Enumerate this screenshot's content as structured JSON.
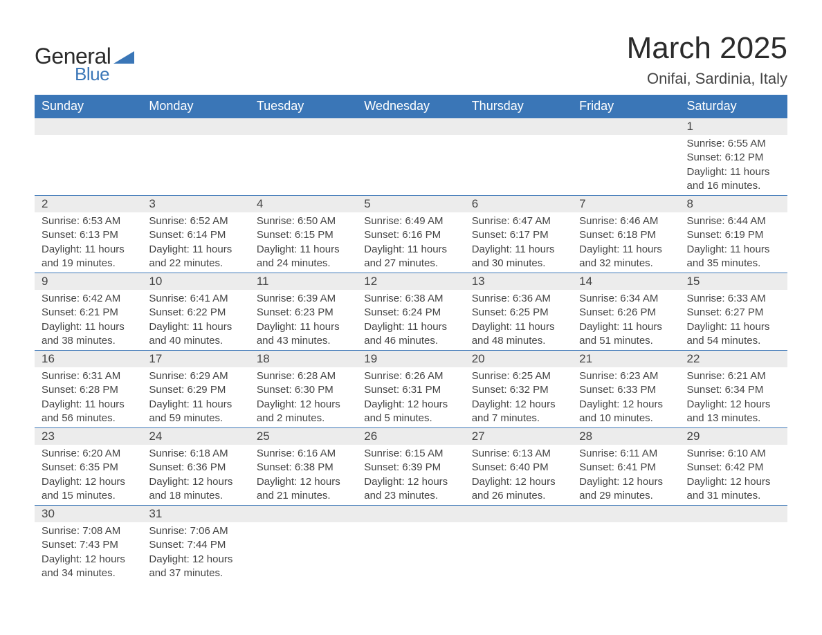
{
  "logo": {
    "text1": "General",
    "text2": "Blue",
    "shape_color": "#3a76b7"
  },
  "title": "March 2025",
  "location": "Onifai, Sardinia, Italy",
  "colors": {
    "header_bg": "#3a76b7",
    "header_text": "#ffffff",
    "daynum_bg": "#ececec",
    "body_text": "#444444",
    "rule": "#3a76b7"
  },
  "weekdays": [
    "Sunday",
    "Monday",
    "Tuesday",
    "Wednesday",
    "Thursday",
    "Friday",
    "Saturday"
  ],
  "weeks": [
    [
      null,
      null,
      null,
      null,
      null,
      null,
      {
        "n": "1",
        "sr": "Sunrise: 6:55 AM",
        "ss": "Sunset: 6:12 PM",
        "d1": "Daylight: 11 hours",
        "d2": "and 16 minutes."
      }
    ],
    [
      {
        "n": "2",
        "sr": "Sunrise: 6:53 AM",
        "ss": "Sunset: 6:13 PM",
        "d1": "Daylight: 11 hours",
        "d2": "and 19 minutes."
      },
      {
        "n": "3",
        "sr": "Sunrise: 6:52 AM",
        "ss": "Sunset: 6:14 PM",
        "d1": "Daylight: 11 hours",
        "d2": "and 22 minutes."
      },
      {
        "n": "4",
        "sr": "Sunrise: 6:50 AM",
        "ss": "Sunset: 6:15 PM",
        "d1": "Daylight: 11 hours",
        "d2": "and 24 minutes."
      },
      {
        "n": "5",
        "sr": "Sunrise: 6:49 AM",
        "ss": "Sunset: 6:16 PM",
        "d1": "Daylight: 11 hours",
        "d2": "and 27 minutes."
      },
      {
        "n": "6",
        "sr": "Sunrise: 6:47 AM",
        "ss": "Sunset: 6:17 PM",
        "d1": "Daylight: 11 hours",
        "d2": "and 30 minutes."
      },
      {
        "n": "7",
        "sr": "Sunrise: 6:46 AM",
        "ss": "Sunset: 6:18 PM",
        "d1": "Daylight: 11 hours",
        "d2": "and 32 minutes."
      },
      {
        "n": "8",
        "sr": "Sunrise: 6:44 AM",
        "ss": "Sunset: 6:19 PM",
        "d1": "Daylight: 11 hours",
        "d2": "and 35 minutes."
      }
    ],
    [
      {
        "n": "9",
        "sr": "Sunrise: 6:42 AM",
        "ss": "Sunset: 6:21 PM",
        "d1": "Daylight: 11 hours",
        "d2": "and 38 minutes."
      },
      {
        "n": "10",
        "sr": "Sunrise: 6:41 AM",
        "ss": "Sunset: 6:22 PM",
        "d1": "Daylight: 11 hours",
        "d2": "and 40 minutes."
      },
      {
        "n": "11",
        "sr": "Sunrise: 6:39 AM",
        "ss": "Sunset: 6:23 PM",
        "d1": "Daylight: 11 hours",
        "d2": "and 43 minutes."
      },
      {
        "n": "12",
        "sr": "Sunrise: 6:38 AM",
        "ss": "Sunset: 6:24 PM",
        "d1": "Daylight: 11 hours",
        "d2": "and 46 minutes."
      },
      {
        "n": "13",
        "sr": "Sunrise: 6:36 AM",
        "ss": "Sunset: 6:25 PM",
        "d1": "Daylight: 11 hours",
        "d2": "and 48 minutes."
      },
      {
        "n": "14",
        "sr": "Sunrise: 6:34 AM",
        "ss": "Sunset: 6:26 PM",
        "d1": "Daylight: 11 hours",
        "d2": "and 51 minutes."
      },
      {
        "n": "15",
        "sr": "Sunrise: 6:33 AM",
        "ss": "Sunset: 6:27 PM",
        "d1": "Daylight: 11 hours",
        "d2": "and 54 minutes."
      }
    ],
    [
      {
        "n": "16",
        "sr": "Sunrise: 6:31 AM",
        "ss": "Sunset: 6:28 PM",
        "d1": "Daylight: 11 hours",
        "d2": "and 56 minutes."
      },
      {
        "n": "17",
        "sr": "Sunrise: 6:29 AM",
        "ss": "Sunset: 6:29 PM",
        "d1": "Daylight: 11 hours",
        "d2": "and 59 minutes."
      },
      {
        "n": "18",
        "sr": "Sunrise: 6:28 AM",
        "ss": "Sunset: 6:30 PM",
        "d1": "Daylight: 12 hours",
        "d2": "and 2 minutes."
      },
      {
        "n": "19",
        "sr": "Sunrise: 6:26 AM",
        "ss": "Sunset: 6:31 PM",
        "d1": "Daylight: 12 hours",
        "d2": "and 5 minutes."
      },
      {
        "n": "20",
        "sr": "Sunrise: 6:25 AM",
        "ss": "Sunset: 6:32 PM",
        "d1": "Daylight: 12 hours",
        "d2": "and 7 minutes."
      },
      {
        "n": "21",
        "sr": "Sunrise: 6:23 AM",
        "ss": "Sunset: 6:33 PM",
        "d1": "Daylight: 12 hours",
        "d2": "and 10 minutes."
      },
      {
        "n": "22",
        "sr": "Sunrise: 6:21 AM",
        "ss": "Sunset: 6:34 PM",
        "d1": "Daylight: 12 hours",
        "d2": "and 13 minutes."
      }
    ],
    [
      {
        "n": "23",
        "sr": "Sunrise: 6:20 AM",
        "ss": "Sunset: 6:35 PM",
        "d1": "Daylight: 12 hours",
        "d2": "and 15 minutes."
      },
      {
        "n": "24",
        "sr": "Sunrise: 6:18 AM",
        "ss": "Sunset: 6:36 PM",
        "d1": "Daylight: 12 hours",
        "d2": "and 18 minutes."
      },
      {
        "n": "25",
        "sr": "Sunrise: 6:16 AM",
        "ss": "Sunset: 6:38 PM",
        "d1": "Daylight: 12 hours",
        "d2": "and 21 minutes."
      },
      {
        "n": "26",
        "sr": "Sunrise: 6:15 AM",
        "ss": "Sunset: 6:39 PM",
        "d1": "Daylight: 12 hours",
        "d2": "and 23 minutes."
      },
      {
        "n": "27",
        "sr": "Sunrise: 6:13 AM",
        "ss": "Sunset: 6:40 PM",
        "d1": "Daylight: 12 hours",
        "d2": "and 26 minutes."
      },
      {
        "n": "28",
        "sr": "Sunrise: 6:11 AM",
        "ss": "Sunset: 6:41 PM",
        "d1": "Daylight: 12 hours",
        "d2": "and 29 minutes."
      },
      {
        "n": "29",
        "sr": "Sunrise: 6:10 AM",
        "ss": "Sunset: 6:42 PM",
        "d1": "Daylight: 12 hours",
        "d2": "and 31 minutes."
      }
    ],
    [
      {
        "n": "30",
        "sr": "Sunrise: 7:08 AM",
        "ss": "Sunset: 7:43 PM",
        "d1": "Daylight: 12 hours",
        "d2": "and 34 minutes."
      },
      {
        "n": "31",
        "sr": "Sunrise: 7:06 AM",
        "ss": "Sunset: 7:44 PM",
        "d1": "Daylight: 12 hours",
        "d2": "and 37 minutes."
      },
      null,
      null,
      null,
      null,
      null
    ]
  ]
}
